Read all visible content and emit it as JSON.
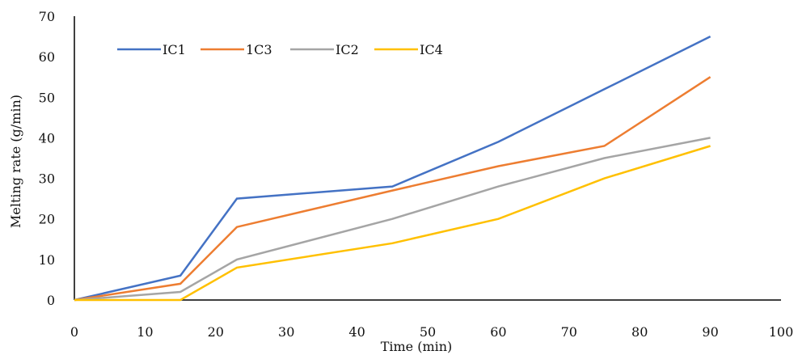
{
  "chart_data": {
    "type": "line",
    "title": "",
    "xlabel": "Time (min)",
    "ylabel": "Melting rate (g/min)",
    "xlim": [
      0,
      100
    ],
    "ylim": [
      0,
      70
    ],
    "xticks": [
      0,
      10,
      20,
      30,
      40,
      50,
      60,
      70,
      80,
      90,
      100
    ],
    "yticks": [
      0,
      10,
      20,
      30,
      40,
      50,
      60,
      70
    ],
    "grid": false,
    "legend_position": "top-left",
    "series": [
      {
        "name": "IC1",
        "color": "#4472C4",
        "x": [
          0,
          15,
          23,
          45,
          60,
          75,
          90
        ],
        "y": [
          0,
          6,
          25,
          28,
          39,
          52,
          65
        ]
      },
      {
        "name": "1C3",
        "color": "#ED7D31",
        "x": [
          0,
          15,
          23,
          45,
          60,
          75,
          90
        ],
        "y": [
          0,
          4,
          18,
          27,
          33,
          38,
          55
        ]
      },
      {
        "name": "IC2",
        "color": "#A5A5A5",
        "x": [
          0,
          15,
          23,
          45,
          60,
          75,
          90
        ],
        "y": [
          0,
          2,
          10,
          20,
          28,
          35,
          40
        ]
      },
      {
        "name": "IC4",
        "color": "#FFC000",
        "x": [
          0,
          15,
          23,
          45,
          60,
          75,
          90
        ],
        "y": [
          0,
          0,
          8,
          14,
          20,
          30,
          38
        ]
      }
    ]
  }
}
